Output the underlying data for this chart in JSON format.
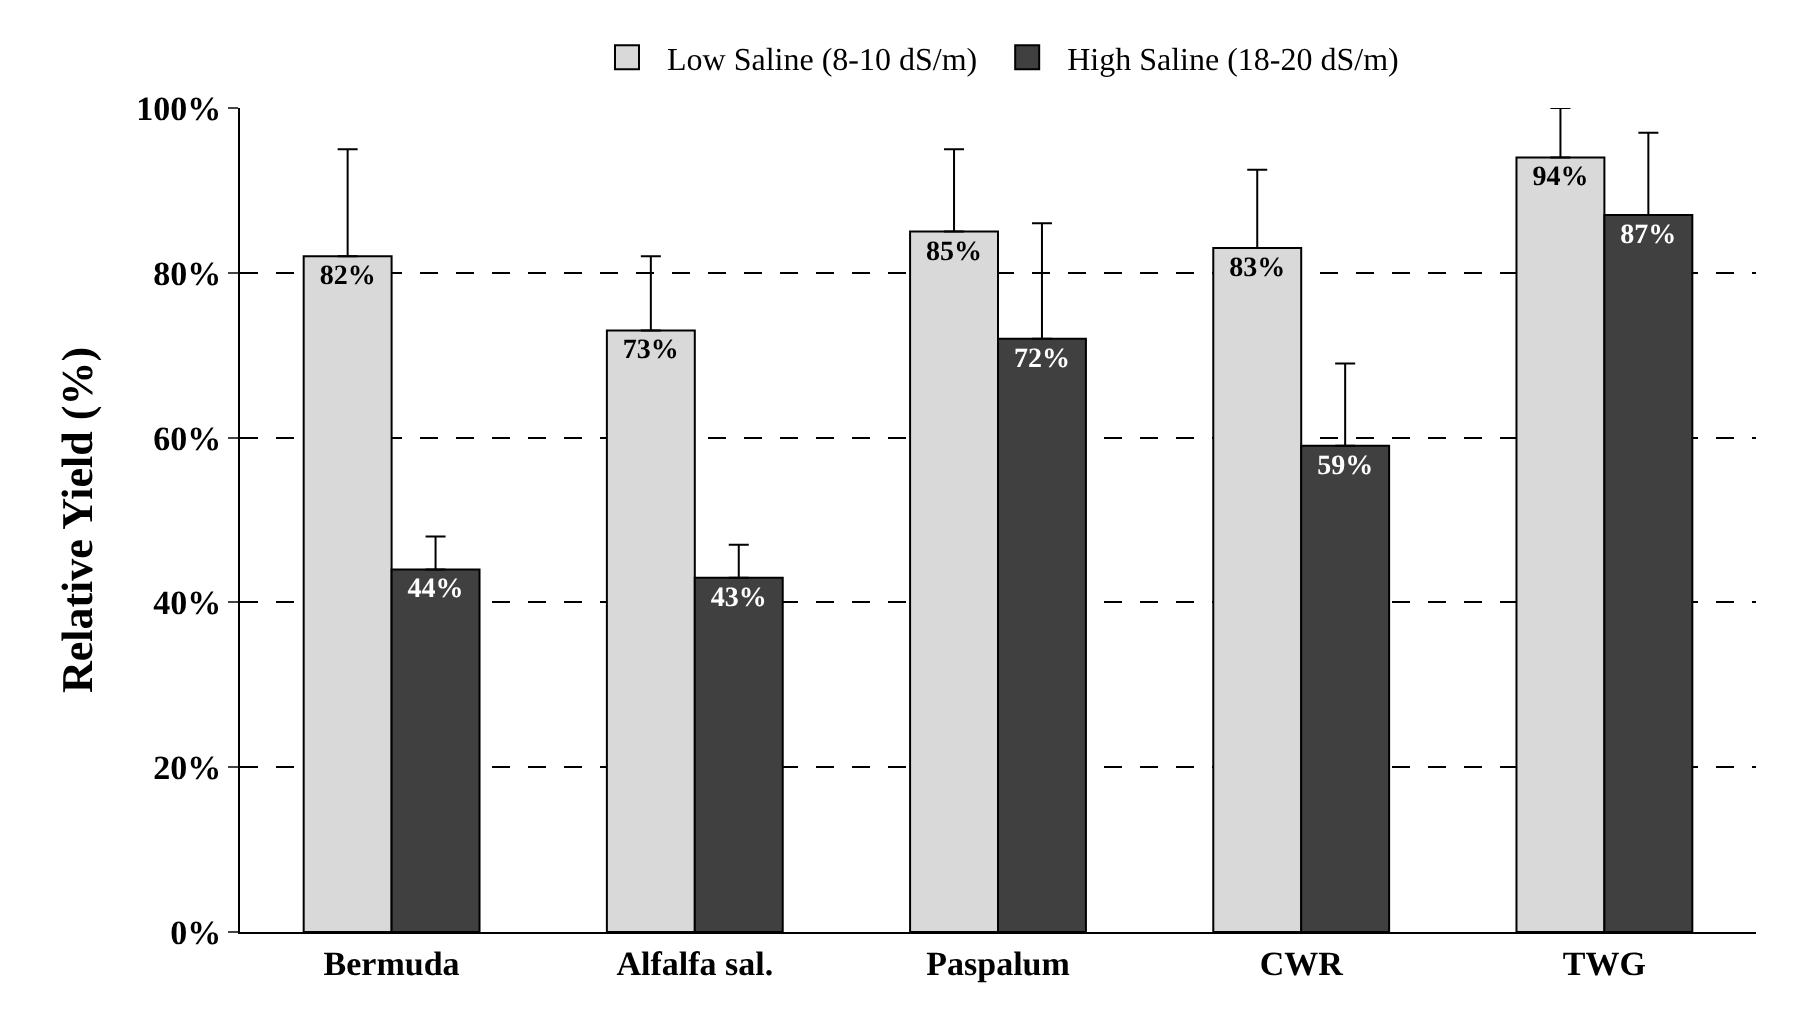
{
  "chart_data": {
    "type": "bar",
    "ylabel": "Relative Yield (%)",
    "categories": [
      "Bermuda",
      "Alfalfa sal.",
      "Paspalum",
      "CWR",
      "TWG"
    ],
    "series": [
      {
        "name": "Low Saline (8-10 dS/m)",
        "color": "#d9d9d9",
        "values": [
          82,
          73,
          85,
          83,
          94
        ],
        "value_labels": [
          "82%",
          "73%",
          "85%",
          "83%",
          "94%"
        ],
        "errors": [
          [
            82,
            95
          ],
          [
            73,
            82
          ],
          [
            85,
            95
          ],
          [
            83,
            92.5
          ],
          [
            94,
            100
          ]
        ]
      },
      {
        "name": "High Saline (18-20 dS/m)",
        "color": "#404040",
        "values": [
          44,
          43,
          72,
          59,
          87
        ],
        "value_labels": [
          "44%",
          "43%",
          "72%",
          "59%",
          "87%"
        ],
        "errors": [
          [
            44,
            48
          ],
          [
            43,
            47
          ],
          [
            72,
            86
          ],
          [
            59,
            69
          ],
          [
            87,
            97
          ]
        ]
      }
    ],
    "ylim": [
      0,
      100
    ],
    "yticks": [
      {
        "value": 0,
        "label": "0%"
      },
      {
        "value": 20,
        "label": "20%"
      },
      {
        "value": 40,
        "label": "40%"
      },
      {
        "value": 60,
        "label": "60%"
      },
      {
        "value": 80,
        "label": "80%"
      },
      {
        "value": 100,
        "label": "100%"
      }
    ],
    "grid": "y",
    "legend": "top"
  }
}
